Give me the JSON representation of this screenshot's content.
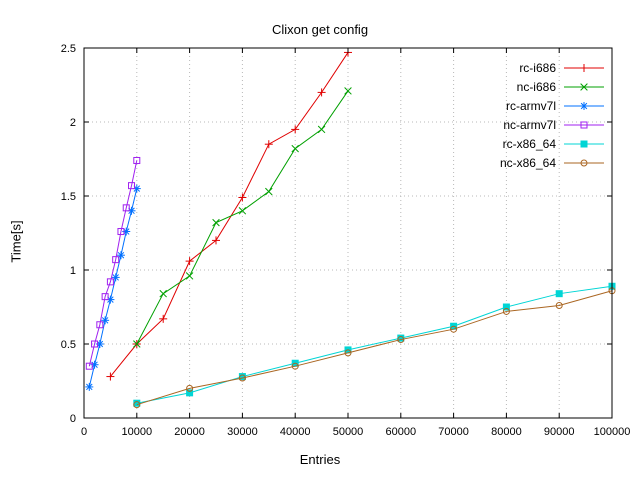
{
  "chart_data": {
    "type": "line",
    "title": "Clixon get config",
    "xlabel": "Entries",
    "ylabel": "Time[s]",
    "xlim": [
      0,
      100000
    ],
    "ylim": [
      0,
      2.5
    ],
    "xticks": [
      0,
      10000,
      20000,
      30000,
      40000,
      50000,
      60000,
      70000,
      80000,
      90000,
      100000
    ],
    "xtick_labels": [
      "0",
      "10000",
      "20000",
      "30000",
      "40000",
      "50000",
      "60000",
      "70000",
      "80000",
      "90000",
      "100000"
    ],
    "yticks": [
      0,
      0.5,
      1,
      1.5,
      2,
      2.5
    ],
    "ytick_labels": [
      "0",
      "0.5",
      "1",
      "1.5",
      "2",
      "2.5"
    ],
    "grid": true,
    "legend_position": "top-right",
    "colors": {
      "grid": "#b8b8b8",
      "border": "#000000"
    },
    "series": [
      {
        "name": "rc-i686",
        "color": "#e00000",
        "marker": "plus",
        "x": [
          5000,
          10000,
          15000,
          20000,
          25000,
          30000,
          35000,
          40000,
          45000,
          50000
        ],
        "y": [
          0.28,
          0.5,
          0.67,
          1.06,
          1.2,
          1.49,
          1.85,
          1.95,
          2.2,
          2.47
        ]
      },
      {
        "name": "nc-i686",
        "color": "#00a000",
        "marker": "cross",
        "x": [
          10000,
          15000,
          20000,
          25000,
          30000,
          35000,
          40000,
          45000,
          50000
        ],
        "y": [
          0.5,
          0.84,
          0.96,
          1.32,
          1.4,
          1.53,
          1.82,
          1.95,
          2.21
        ]
      },
      {
        "name": "rc-armv7l",
        "color": "#0070ff",
        "marker": "asterisk",
        "x": [
          1000,
          2000,
          3000,
          4000,
          5000,
          6000,
          7000,
          8000,
          9000,
          10000
        ],
        "y": [
          0.21,
          0.36,
          0.5,
          0.66,
          0.8,
          0.95,
          1.1,
          1.26,
          1.4,
          1.55
        ]
      },
      {
        "name": "nc-armv7l",
        "color": "#a020f0",
        "marker": "square-open",
        "x": [
          1000,
          2000,
          3000,
          4000,
          5000,
          6000,
          7000,
          8000,
          9000,
          10000
        ],
        "y": [
          0.35,
          0.5,
          0.63,
          0.82,
          0.92,
          1.07,
          1.26,
          1.42,
          1.57,
          1.74
        ]
      },
      {
        "name": "rc-x86_64",
        "color": "#00d5d5",
        "marker": "square-filled",
        "x": [
          10000,
          20000,
          30000,
          40000,
          50000,
          60000,
          70000,
          80000,
          90000,
          100000
        ],
        "y": [
          0.1,
          0.17,
          0.28,
          0.37,
          0.46,
          0.54,
          0.62,
          0.75,
          0.84,
          0.89
        ]
      },
      {
        "name": "nc-x86_64",
        "color": "#aa6622",
        "marker": "circle-open",
        "x": [
          10000,
          20000,
          30000,
          40000,
          50000,
          60000,
          70000,
          80000,
          90000,
          100000
        ],
        "y": [
          0.09,
          0.2,
          0.27,
          0.35,
          0.44,
          0.53,
          0.6,
          0.72,
          0.76,
          0.86
        ]
      }
    ]
  }
}
